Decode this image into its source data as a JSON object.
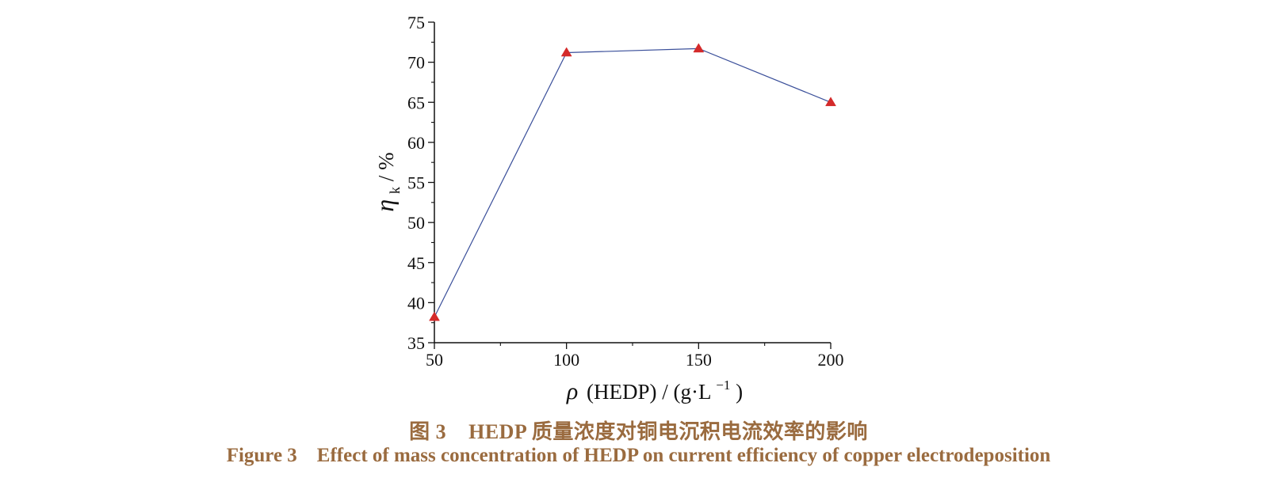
{
  "caption": {
    "cn": "图 3    HEDP 质量浓度对铜电沉积电流效率的影响",
    "en": "Figure 3    Effect of mass concentration of HEDP on current efficiency of copper electrodeposition",
    "color": "#9a6b3f"
  },
  "chart_data": {
    "type": "line",
    "title": "",
    "xlabel": {
      "symbol": "ρ",
      "text": "(HEDP) / (g·L",
      "superscript": "−1",
      "suffix": ")"
    },
    "ylabel": {
      "symbol": "η",
      "subscript": "k",
      "text": " / %"
    },
    "xlim": [
      50,
      200
    ],
    "ylim": [
      35,
      75
    ],
    "x_ticks": [
      50,
      100,
      150,
      200
    ],
    "y_ticks": [
      35,
      40,
      45,
      50,
      55,
      60,
      65,
      70,
      75
    ],
    "grid": false,
    "legend": "none",
    "series": [
      {
        "x": [
          50,
          100,
          150,
          200
        ],
        "values": [
          38.2,
          71.2,
          71.7,
          65.0
        ],
        "line_color": "#3a4f9a",
        "marker": "triangle",
        "marker_color": "#d42a2a"
      }
    ]
  }
}
